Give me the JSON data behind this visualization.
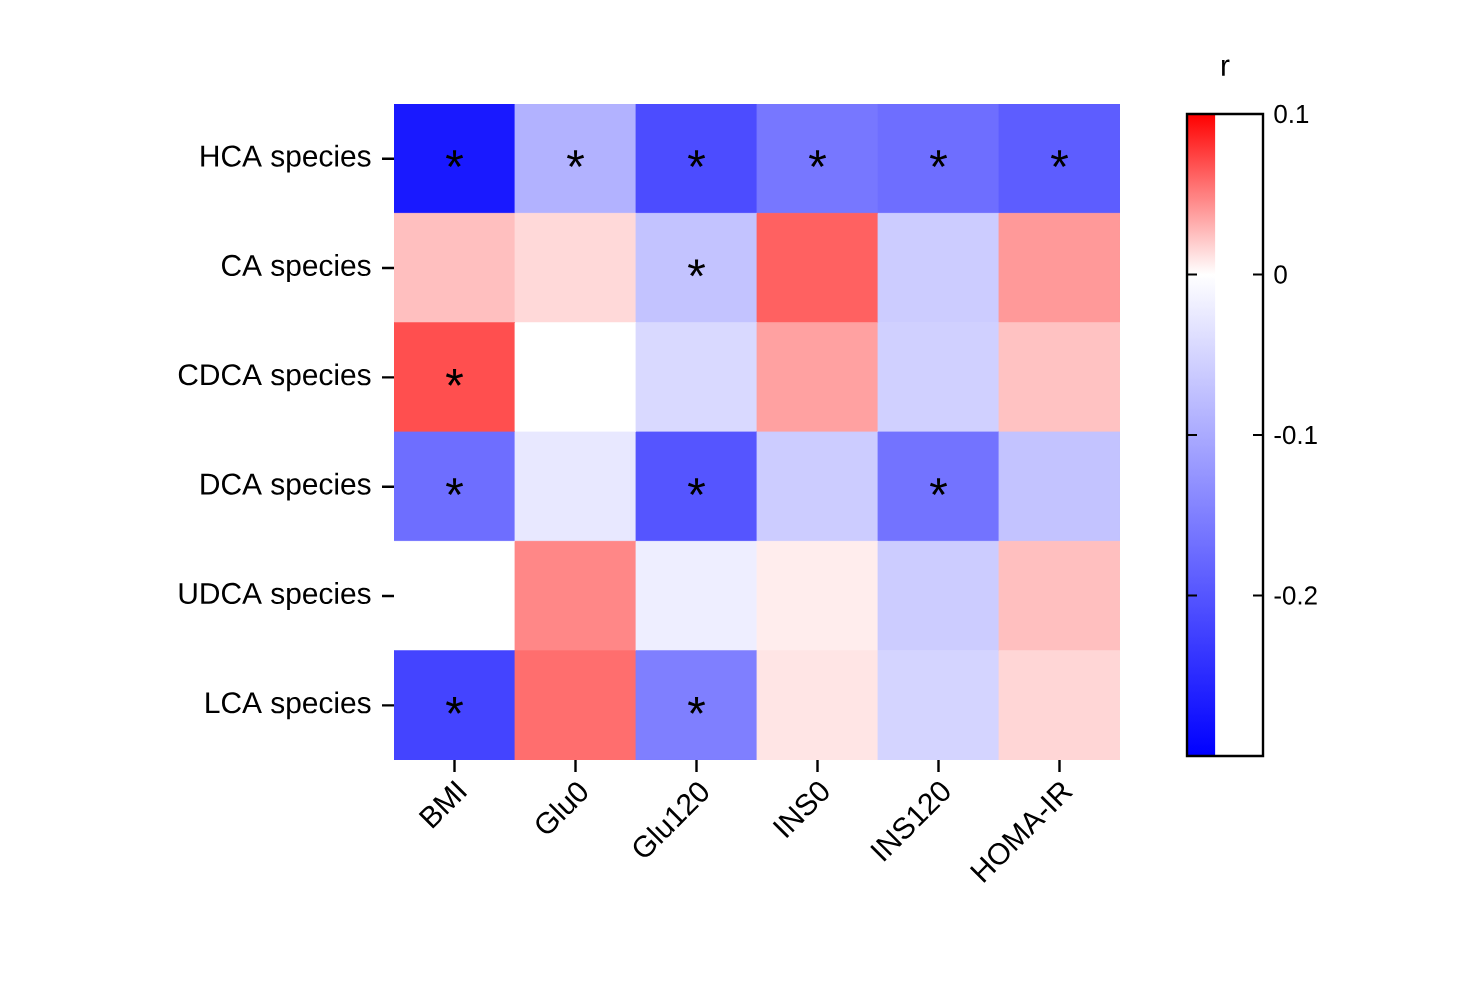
{
  "chart_data": {
    "type": "heatmap",
    "categories": [
      "BMI",
      "Glu0",
      "Glu120",
      "INS0",
      "INS120",
      "HOMA-IR"
    ],
    "y_categories": [
      "HCA species",
      "CA species",
      "CDCA species",
      "DCA species",
      "UDCA species",
      "LCA species"
    ],
    "cells": [
      [
        -0.27,
        -0.09,
        -0.21,
        -0.16,
        -0.17,
        -0.19
      ],
      [
        0.025,
        0.015,
        -0.07,
        0.062,
        -0.06,
        0.04
      ],
      [
        0.069,
        0.0,
        -0.045,
        0.037,
        -0.055,
        0.024
      ],
      [
        -0.17,
        -0.027,
        -0.2,
        -0.06,
        -0.165,
        -0.07
      ],
      [
        0.0,
        0.047,
        -0.02,
        0.007,
        -0.06,
        0.025
      ],
      [
        -0.22,
        0.057,
        -0.15,
        0.01,
        -0.05,
        0.016
      ]
    ],
    "cell_labels": [
      [
        "*",
        "*",
        "*",
        "*",
        "*",
        "*"
      ],
      [
        null,
        null,
        "*",
        null,
        null,
        null
      ],
      [
        "*",
        null,
        null,
        null,
        null,
        null
      ],
      [
        "*",
        null,
        "*",
        null,
        "*",
        null
      ],
      [
        null,
        null,
        null,
        null,
        null,
        null
      ],
      [
        "*",
        null,
        "*",
        null,
        null,
        null
      ]
    ],
    "clim": [
      -0.3,
      0.1
    ],
    "cticks": [
      0.1,
      0,
      -0.1,
      -0.2
    ],
    "clabel": "r"
  }
}
